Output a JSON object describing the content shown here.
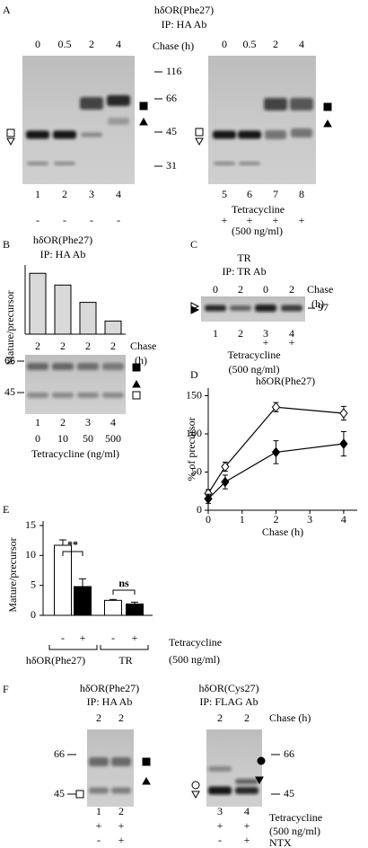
{
  "panel_a": {
    "label": "A",
    "title": "hδOR(Phe27)",
    "ip": "IP: HA Ab",
    "chase_label": "Chase (h)",
    "chase_left": [
      "0",
      "0.5",
      "2",
      "4"
    ],
    "chase_right": [
      "0",
      "0.5",
      "2",
      "4"
    ],
    "mw_markers": [
      "116",
      "66",
      "45",
      "31"
    ],
    "lanes_left": [
      "1",
      "2",
      "3",
      "4"
    ],
    "lanes_right": [
      "5",
      "6",
      "7",
      "8"
    ],
    "tet_left": [
      "-",
      "-",
      "-",
      "-"
    ],
    "tet_right": [
      "+",
      "+",
      "+",
      "+"
    ],
    "tet_label": "Tetracycline",
    "tet_conc": "(500 ng/ml)"
  },
  "panel_b": {
    "label": "B",
    "title": "hδOR(Phe27)",
    "ip": "IP: HA Ab",
    "chase": [
      "2",
      "2",
      "2",
      "2"
    ],
    "chase_label": "Chase",
    "chase_unit": "(h)",
    "mw_markers": [
      "66",
      "45"
    ],
    "lanes": [
      "1",
      "2",
      "3",
      "4"
    ],
    "tet": [
      "0",
      "10",
      "50",
      "500"
    ],
    "tet_label": "Tetracycline (ng/ml)"
  },
  "panel_c": {
    "label": "C",
    "title": "TR",
    "ip": "IP: TR Ab",
    "chase": [
      "0",
      "2",
      "0",
      "2"
    ],
    "chase_label": "Chase",
    "chase_unit": "(h)",
    "mw_marker": "97",
    "lanes": [
      "1",
      "2",
      "3",
      "4"
    ],
    "tet": [
      "+",
      "+"
    ],
    "tet_label": "Tetracycline",
    "tet_conc": "(500 ng/ml)"
  },
  "panel_d": {
    "label": "D"
  },
  "panel_e": {
    "label": "E"
  },
  "panel_f": {
    "label": "F",
    "left": {
      "title": "hδOR(Phe27)",
      "ip": "IP: HA Ab",
      "chase": [
        "2",
        "2"
      ],
      "mw_markers": [
        "66",
        "45"
      ],
      "lanes": [
        "1",
        "2"
      ],
      "tet": [
        "+",
        "+"
      ],
      "ntx": [
        "-",
        "+"
      ]
    },
    "right": {
      "title": "hδOR(Cys27)",
      "ip": "IP: FLAG Ab",
      "chase": [
        "2",
        "2"
      ],
      "mw_markers": [
        "66",
        "45"
      ],
      "lanes": [
        "3",
        "4"
      ],
      "tet": [
        "+",
        "+"
      ],
      "ntx": [
        "-",
        "+"
      ]
    },
    "chase_label": "Chase (h)",
    "tet_label": "Tetracycline",
    "tet_conc": "(500 ng/ml)",
    "ntx_label": "NTX"
  },
  "chart_data": [
    {
      "type": "bar",
      "ylabel": "Mature/precursor",
      "values": [
        8.8,
        7.1,
        4.6,
        1.9
      ],
      "ylim": [
        0,
        10
      ],
      "color": "#d9d9d9"
    },
    {
      "type": "line",
      "title": "hδOR(Phe27)",
      "ylabel": "% of precursor",
      "xlabel": "Chase (h)",
      "x": [
        0,
        0.5,
        2,
        4
      ],
      "xlim": [
        0,
        4.4
      ],
      "xticks": [
        0,
        1,
        2,
        3,
        4
      ],
      "ylim": [
        0,
        160
      ],
      "yticks": [
        0,
        50,
        100,
        150
      ],
      "series": [
        {
          "marker": "open-diamond",
          "values": [
            22,
            57,
            135,
            127
          ],
          "errors": [
            5,
            6,
            6,
            9
          ]
        },
        {
          "marker": "filled-diamond",
          "values": [
            15,
            37,
            76,
            87
          ],
          "errors": [
            6,
            9,
            15,
            16
          ]
        }
      ]
    },
    {
      "type": "grouped-bar",
      "ylabel": "Mature/precursor",
      "groups": [
        "hδOR(Phe27)",
        "TR"
      ],
      "signs": [
        "-",
        "+",
        "-",
        "+"
      ],
      "values": [
        11.7,
        4.8,
        2.5,
        1.9
      ],
      "errors": [
        0.9,
        1.3,
        0.15,
        0.3
      ],
      "colors": [
        "#ffffff",
        "#000000",
        "#ffffff",
        "#000000"
      ],
      "ylim": [
        0,
        15
      ],
      "yticks": [
        0,
        5,
        10,
        15
      ],
      "annotations": [
        "**",
        "ns"
      ],
      "tet_label": "Tetracycline",
      "tet_conc": "(500 ng/ml)"
    }
  ]
}
